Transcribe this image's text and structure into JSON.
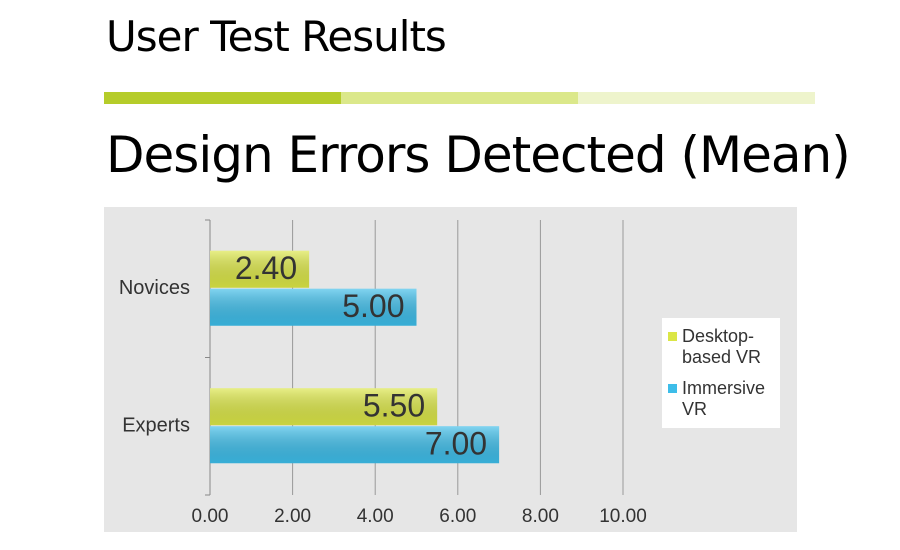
{
  "header": {
    "title": "User Test Results"
  },
  "chart_data": {
    "type": "hbar",
    "title": "Design Errors Detected (Mean)",
    "categories": [
      "Novices",
      "Experts"
    ],
    "series": [
      {
        "name": "Desktop-based VR",
        "color": "#dbe646",
        "values": [
          2.4,
          5.5
        ],
        "value_labels": [
          "2.40",
          "5.50"
        ]
      },
      {
        "name": "Immersive VR",
        "color": "#3dbde9",
        "values": [
          5,
          7
        ],
        "value_labels": [
          "5.00",
          "7.00"
        ]
      }
    ],
    "xlim": [
      0,
      10
    ],
    "xticks": [
      {
        "value": 0,
        "label": "0.00"
      },
      {
        "value": 2,
        "label": "2.00"
      },
      {
        "value": 4,
        "label": "4.00"
      },
      {
        "value": 6,
        "label": "6.00"
      },
      {
        "value": 8,
        "label": "8.00"
      },
      {
        "value": 10,
        "label": "10.00"
      }
    ],
    "grid": true,
    "legend": "right"
  }
}
